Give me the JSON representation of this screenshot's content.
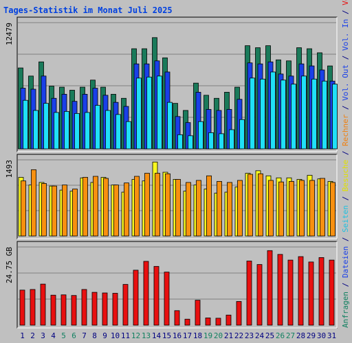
{
  "title": "Tages-Statistik im Monat Juli 2025",
  "colors": {
    "anfragen": "#1a7a5a",
    "dateien": "#1a40e8",
    "seiten": "#20e0f8",
    "besuche": "#f8f820",
    "rechner": "#f89010",
    "volumen": "#e81010",
    "weekend_label": "#108060",
    "normal_label": "#000080",
    "background": "#c0c0c0"
  },
  "right_labels": {
    "top": [
      {
        "text": "Anfragen",
        "color": "#108060"
      },
      {
        "text": " / ",
        "color": "#000080"
      },
      {
        "text": "Dateien",
        "color": "#1a40e8"
      },
      {
        "text": " / ",
        "color": "#000080"
      },
      {
        "text": "Seiten",
        "color": "#20c0e0"
      },
      {
        "text": " / ",
        "color": "#000080"
      },
      {
        "text": "Besuche",
        "color": "#e0e000"
      },
      {
        "text": " / ",
        "color": "#000080"
      },
      {
        "text": "Rechner",
        "color": "#f08010"
      },
      {
        "text": " / ",
        "color": "#000080"
      },
      {
        "text": "Vol. Out",
        "color": "#1a40e8"
      },
      {
        "text": " / ",
        "color": "#000080"
      },
      {
        "text": "Vol. In",
        "color": "#1a40e8"
      },
      {
        "text": " / ",
        "color": "#000080"
      },
      {
        "text": "Volumen",
        "color": "#e81010"
      }
    ]
  },
  "chart_data": [
    {
      "type": "bar",
      "panel": "requests",
      "ymax_label": "12479",
      "ymax": 12479,
      "categories": [
        "1",
        "2",
        "3",
        "4",
        "5",
        "6",
        "7",
        "8",
        "9",
        "10",
        "11",
        "12",
        "13",
        "14",
        "15",
        "16",
        "17",
        "18",
        "19",
        "20",
        "21",
        "22",
        "23",
        "24",
        "25",
        "26",
        "27",
        "28",
        "29",
        "30",
        "31"
      ],
      "weekend": [
        "5",
        "6",
        "12",
        "13",
        "19",
        "20",
        "26",
        "27"
      ],
      "series": [
        {
          "name": "Anfragen",
          "values": [
            8000,
            7200,
            8600,
            6200,
            6100,
            5800,
            6100,
            6800,
            6100,
            5400,
            5000,
            9900,
            9900,
            11000,
            9000,
            4500,
            3800,
            6500,
            5300,
            5000,
            5600,
            6100,
            10200,
            10000,
            10200,
            8800,
            8700,
            10000,
            9900,
            9500,
            8200
          ]
        },
        {
          "name": "Dateien",
          "values": [
            6000,
            5900,
            7200,
            5000,
            5400,
            4700,
            5400,
            6000,
            5300,
            4600,
            4200,
            8400,
            8400,
            8700,
            7600,
            3200,
            2600,
            5600,
            3900,
            3800,
            3900,
            4900,
            8500,
            8400,
            8600,
            7400,
            7200,
            8400,
            8200,
            7800,
            6700
          ]
        },
        {
          "name": "Seiten",
          "values": [
            4800,
            3800,
            4500,
            3600,
            3700,
            3500,
            3600,
            4300,
            3800,
            3400,
            2700,
            7000,
            7100,
            7200,
            4600,
            1400,
            1300,
            2700,
            1600,
            1500,
            1900,
            2900,
            7000,
            6900,
            7600,
            6800,
            6400,
            7200,
            6900,
            6700,
            6400
          ]
        }
      ]
    },
    {
      "type": "bar",
      "panel": "visits",
      "ymax_label": "1493",
      "ymax": 1493,
      "series": [
        {
          "name": "Besuche",
          "values": [
            1150,
            1000,
            1050,
            980,
            900,
            880,
            1140,
            1050,
            1150,
            1000,
            860,
            1110,
            1080,
            1450,
            1250,
            1110,
            880,
            1000,
            920,
            840,
            860,
            960,
            1230,
            1280,
            1180,
            1140,
            1140,
            1110,
            1190,
            1120,
            1070
          ]
        },
        {
          "name": "Rechner",
          "values": [
            1080,
            1300,
            1030,
            980,
            1000,
            920,
            1150,
            1170,
            1130,
            1000,
            1040,
            1170,
            1230,
            1230,
            1220,
            1110,
            1050,
            1090,
            1180,
            1070,
            1050,
            1090,
            1210,
            1220,
            1090,
            1060,
            1070,
            1090,
            1090,
            1130,
            1050
          ]
        }
      ]
    },
    {
      "type": "bar",
      "panel": "volume",
      "ymax_label": "24.75 GB",
      "ymax": 24.75,
      "series": [
        {
          "name": "Volumen",
          "values": [
            11.1,
            11.3,
            13.0,
            9.5,
            9.6,
            9.4,
            11.3,
            10.4,
            10.2,
            10.1,
            12.9,
            17.4,
            20.2,
            18.6,
            16.8,
            4.6,
            1.9,
            7.9,
            2.3,
            2.2,
            3.2,
            7.5,
            20.3,
            19.2,
            23.6,
            22.4,
            20.6,
            21.7,
            20.0,
            21.4,
            20.6
          ]
        }
      ]
    }
  ]
}
